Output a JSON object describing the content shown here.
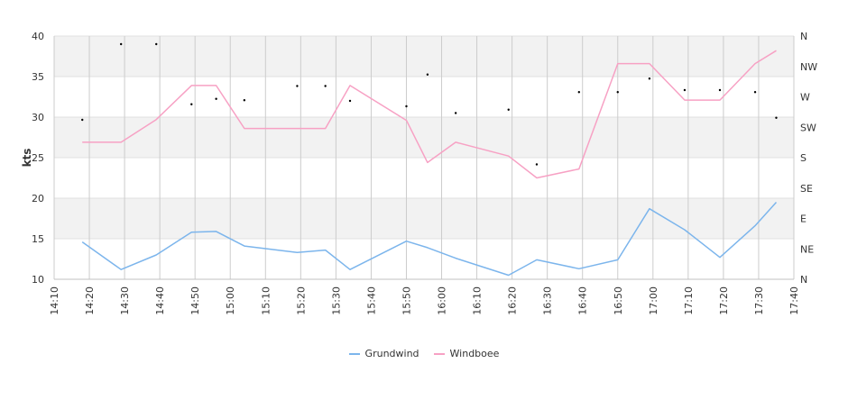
{
  "chart_data": {
    "type": "line",
    "ylabel": "kts",
    "ylim": [
      10,
      40
    ],
    "yticks": [
      "10",
      "15",
      "20",
      "25",
      "30",
      "35",
      "40"
    ],
    "xlim": [
      "14:10",
      "17:40"
    ],
    "xticks": [
      "14:10",
      "14:20",
      "14:30",
      "14:40",
      "14:50",
      "15:00",
      "15:10",
      "15:20",
      "15:30",
      "15:40",
      "15:50",
      "16:00",
      "16:10",
      "16:20",
      "16:30",
      "16:40",
      "16:50",
      "17:00",
      "17:10",
      "17:20",
      "17:30",
      "17:40"
    ],
    "right_axis": {
      "ticks": [
        "N",
        "NE",
        "E",
        "SE",
        "S",
        "SW",
        "W",
        "NW",
        "N"
      ],
      "range_deg": [
        0,
        360
      ]
    },
    "grid": true,
    "legend_position": "bottom",
    "series": [
      {
        "name": "Grundwind",
        "color": "#7cb5ec",
        "x": [
          "14:18",
          "14:29",
          "14:39",
          "14:49",
          "14:56",
          "15:04",
          "15:19",
          "15:27",
          "15:34",
          "15:50",
          "15:56",
          "16:04",
          "16:19",
          "16:27",
          "16:39",
          "16:50",
          "16:59",
          "17:09",
          "17:19",
          "17:29",
          "17:35"
        ],
        "values": [
          14.6,
          11.2,
          13.0,
          15.8,
          15.9,
          14.1,
          13.3,
          13.6,
          11.2,
          14.7,
          13.9,
          12.6,
          10.5,
          12.4,
          11.3,
          12.4,
          18.7,
          16.1,
          12.7,
          16.6,
          19.5
        ]
      },
      {
        "name": "Windboee",
        "color": "#f7a1c4",
        "x": [
          "14:18",
          "14:29",
          "14:39",
          "14:49",
          "14:56",
          "15:04",
          "15:19",
          "15:27",
          "15:34",
          "15:50",
          "15:56",
          "16:04",
          "16:19",
          "16:27",
          "16:39",
          "16:50",
          "16:59",
          "17:09",
          "17:19",
          "17:29",
          "17:35"
        ],
        "values": [
          26.9,
          26.9,
          29.7,
          33.9,
          33.9,
          28.6,
          28.6,
          28.6,
          33.9,
          29.6,
          24.4,
          26.9,
          25.2,
          22.5,
          23.6,
          36.6,
          36.6,
          32.1,
          32.1,
          36.6,
          38.2
        ]
      }
    ],
    "direction_points": {
      "color": "#000000",
      "x": [
        "14:18",
        "14:29",
        "14:39",
        "14:49",
        "14:56",
        "15:04",
        "15:19",
        "15:27",
        "15:34",
        "15:50",
        "15:56",
        "16:04",
        "16:19",
        "16:27",
        "16:39",
        "16:50",
        "16:59",
        "17:09",
        "17:19",
        "17:29",
        "17:35"
      ],
      "values_deg": [
        236,
        348,
        348,
        259,
        267,
        265,
        286,
        286,
        264,
        256,
        303,
        246,
        251,
        170,
        277,
        277,
        297,
        280,
        280,
        277,
        239
      ]
    }
  }
}
